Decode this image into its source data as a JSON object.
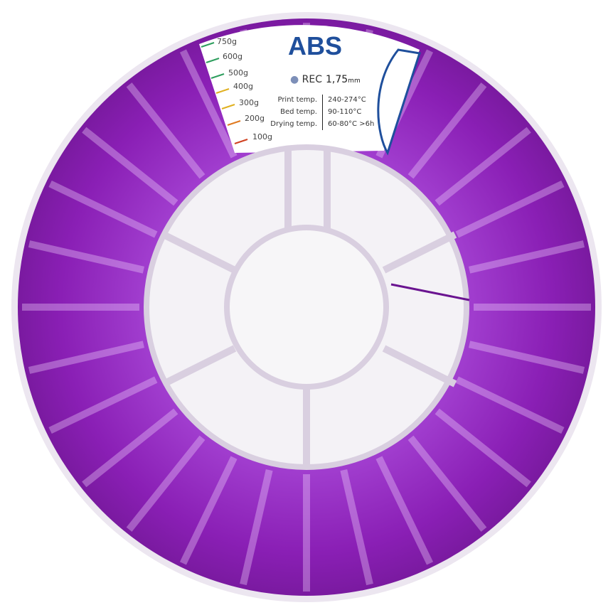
{
  "product": {
    "material": "ABS",
    "recycled_label": "REC",
    "diameter_value": "1,75",
    "diameter_unit": "mm",
    "specs": [
      {
        "key": "Print temp.",
        "value": "240-274°C"
      },
      {
        "key": "Bed temp.",
        "value": "90-110°C"
      },
      {
        "key": "Drying temp.",
        "value": "60-80°C  >6h"
      }
    ],
    "weight_scale": [
      "750g",
      "600g",
      "500g",
      "400g",
      "300g",
      "200g",
      "100g"
    ],
    "scale_colors": [
      "#2e9e5e",
      "#2e9e5e",
      "#2e9e5e",
      "#e0b020",
      "#e0b020",
      "#e07a20",
      "#d04020"
    ]
  },
  "colors": {
    "filament": "#8a1fb5",
    "brand_blue": "#1f4f9c"
  }
}
